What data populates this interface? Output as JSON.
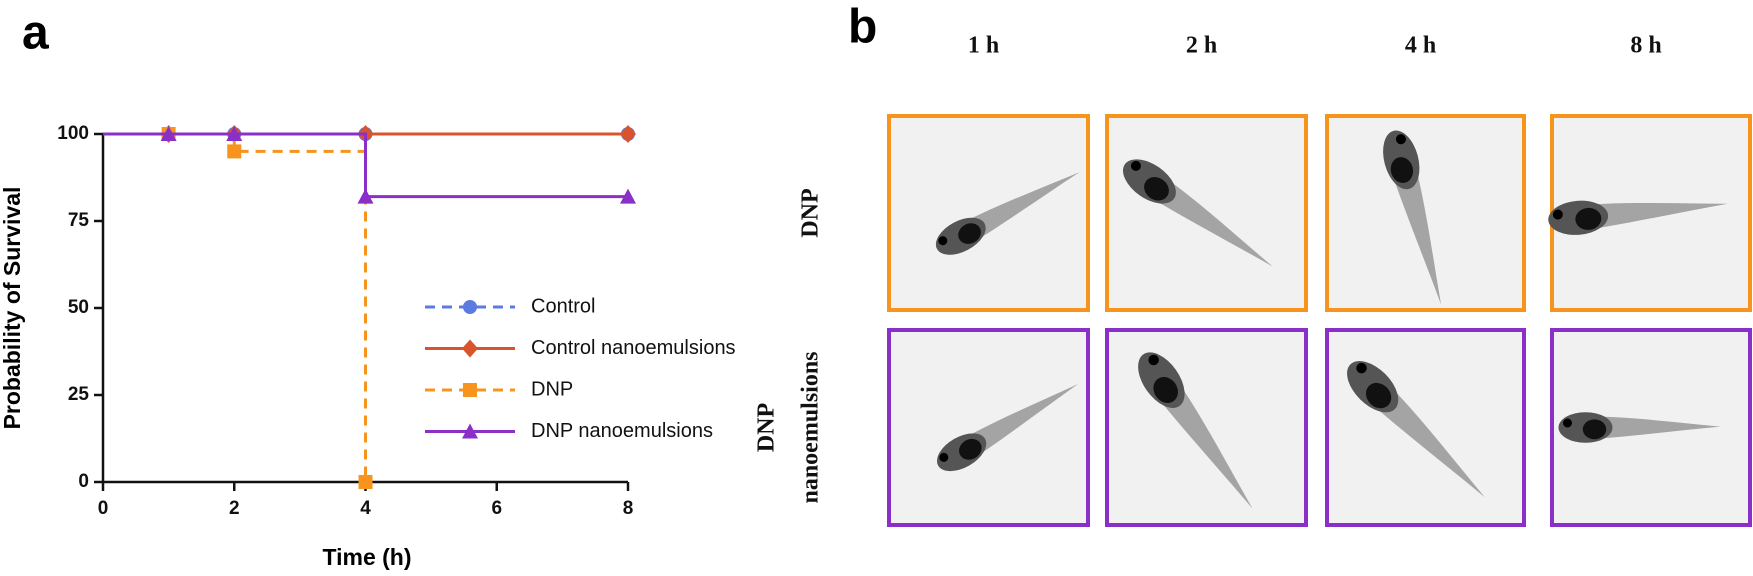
{
  "chart_data": {
    "type": "line",
    "step": true,
    "panel_label": "a",
    "xlabel": "Time (h)",
    "ylabel": "Probability of Survival",
    "x": [
      0,
      1,
      2,
      4,
      8
    ],
    "xlim": [
      0,
      8
    ],
    "xticks": [
      0,
      2,
      4,
      6,
      8
    ],
    "ylim": [
      0,
      100
    ],
    "yticks": [
      0,
      25,
      50,
      75,
      100
    ],
    "legend": "right",
    "series": [
      {
        "name": "Control",
        "color": "#5b7be0",
        "marker": "circle",
        "dashed": true,
        "values": [
          100,
          100,
          100,
          100,
          100
        ]
      },
      {
        "name": "Control nanoemulsions",
        "color": "#d9542c",
        "marker": "diamond",
        "dashed": false,
        "values": [
          100,
          100,
          100,
          100,
          100
        ]
      },
      {
        "name": "DNP",
        "color": "#f7941d",
        "marker": "square",
        "dashed": true,
        "values": [
          100,
          100,
          95,
          0,
          null
        ]
      },
      {
        "name": "DNP nanoemulsions",
        "color": "#8b2fc9",
        "marker": "triangle",
        "dashed": false,
        "values": [
          100,
          100,
          100,
          82,
          82
        ]
      }
    ]
  },
  "panel_b": {
    "label": "b",
    "columns": [
      "1 h",
      "2 h",
      "4 h",
      "8 h"
    ],
    "rows": [
      {
        "label_lines": [
          "DNP"
        ],
        "color": "#f7941d"
      },
      {
        "label_lines": [
          "DNP",
          "nanoemulsions"
        ],
        "color": "#8b2fc9"
      }
    ]
  }
}
